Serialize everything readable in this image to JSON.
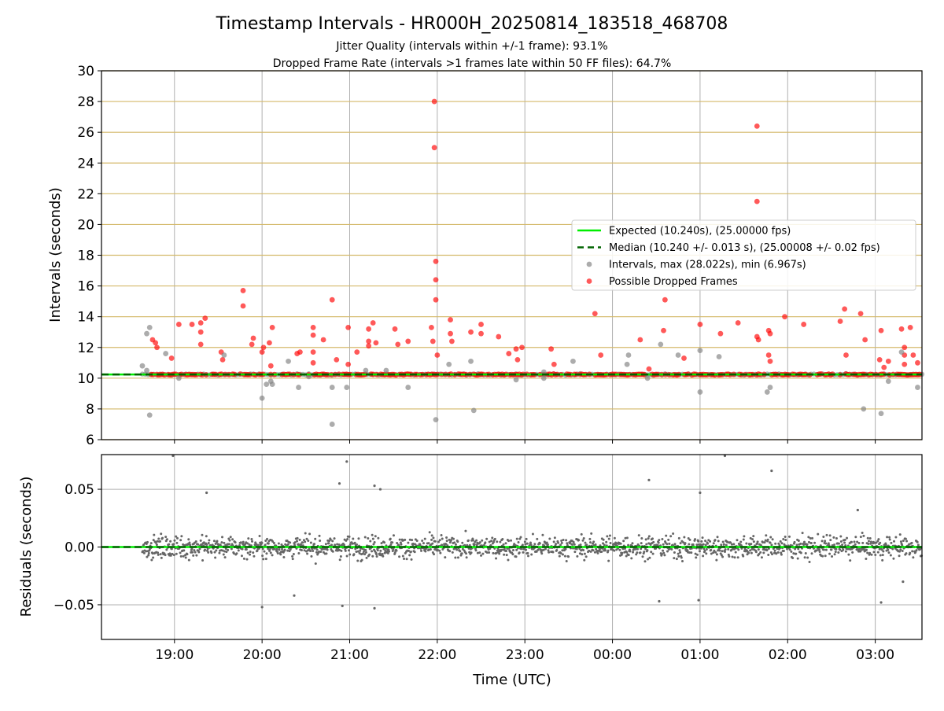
{
  "title": "Timestamp Intervals - HR000H_20250814_183518_468708",
  "subtitle_1": "Jitter Quality (intervals within +/-1 frame): 93.1%",
  "subtitle_2": "Dropped Frame Rate (intervals >1 frames late within 50 FF files): 64.7%",
  "colors": {
    "expected": "#00ee00",
    "median": "#006400",
    "intervals": "#808080",
    "dropped": "#ff0000",
    "gold_grid": "#d4b96a",
    "grid": "#b0b0b0"
  },
  "chart_data": [
    {
      "type": "scatter",
      "ylabel": "Intervals (seconds)",
      "ylim": [
        6,
        30
      ],
      "yticks": [
        "6",
        "8",
        "10",
        "12",
        "14",
        "16",
        "18",
        "20",
        "22",
        "24",
        "26",
        "28",
        "30"
      ],
      "xlim": [
        "18:10",
        "03:32"
      ],
      "grid": true,
      "legend_position": "center-right",
      "legend": [
        {
          "label": "Expected (10.240s), (25.00000 fps)",
          "style": "solid-line",
          "color": "#00ee00"
        },
        {
          "label": "Median (10.240 +/- 0.013 s), (25.00008 +/- 0.02 fps)",
          "style": "dashed-line",
          "color": "#006400"
        },
        {
          "label": "Intervals, max (28.022s), min (6.967s)",
          "style": "marker",
          "color": "#808080"
        },
        {
          "label": "Possible Dropped Frames",
          "style": "marker",
          "color": "#ff0000"
        }
      ],
      "expected_interval": 10.24,
      "median_interval": 10.24,
      "series": [
        {
          "name": "Possible Dropped Frames",
          "points": [
            [
              "18:45",
              12.5
            ],
            [
              "18:47",
              12.3
            ],
            [
              "18:48",
              12.0
            ],
            [
              "18:58",
              11.3
            ],
            [
              "19:03",
              13.5
            ],
            [
              "19:12",
              13.5
            ],
            [
              "19:18",
              12.2
            ],
            [
              "19:18",
              13.0
            ],
            [
              "19:18",
              13.6
            ],
            [
              "19:21",
              13.9
            ],
            [
              "19:32",
              11.7
            ],
            [
              "19:33",
              11.2
            ],
            [
              "19:47",
              15.7
            ],
            [
              "19:47",
              14.7
            ],
            [
              "19:53",
              12.2
            ],
            [
              "19:54",
              12.6
            ],
            [
              "20:00",
              11.7
            ],
            [
              "20:01",
              12.0
            ],
            [
              "20:05",
              12.3
            ],
            [
              "20:06",
              10.8
            ],
            [
              "20:07",
              13.3
            ],
            [
              "20:24",
              11.6
            ],
            [
              "20:26",
              11.7
            ],
            [
              "20:35",
              11.0
            ],
            [
              "20:35",
              11.7
            ],
            [
              "20:35",
              12.8
            ],
            [
              "20:35",
              13.3
            ],
            [
              "20:42",
              12.5
            ],
            [
              "20:48",
              15.1
            ],
            [
              "20:51",
              11.2
            ],
            [
              "20:59",
              10.9
            ],
            [
              "20:59",
              13.3
            ],
            [
              "21:05",
              11.7
            ],
            [
              "21:13",
              12.4
            ],
            [
              "21:13",
              12.1
            ],
            [
              "21:13",
              13.2
            ],
            [
              "21:16",
              13.6
            ],
            [
              "21:18",
              12.3
            ],
            [
              "21:31",
              13.2
            ],
            [
              "21:33",
              12.2
            ],
            [
              "21:40",
              12.4
            ],
            [
              "21:56",
              13.3
            ],
            [
              "21:57",
              12.4
            ],
            [
              "21:58",
              28.0
            ],
            [
              "21:58",
              25.0
            ],
            [
              "21:59",
              17.6
            ],
            [
              "21:59",
              16.4
            ],
            [
              "21:59",
              15.1
            ],
            [
              "22:00",
              11.5
            ],
            [
              "22:09",
              13.8
            ],
            [
              "22:09",
              12.9
            ],
            [
              "22:10",
              12.4
            ],
            [
              "22:23",
              13.0
            ],
            [
              "22:30",
              13.5
            ],
            [
              "22:30",
              12.9
            ],
            [
              "22:42",
              12.7
            ],
            [
              "22:49",
              11.6
            ],
            [
              "22:54",
              11.9
            ],
            [
              "22:55",
              11.2
            ],
            [
              "22:58",
              12.0
            ],
            [
              "23:18",
              11.9
            ],
            [
              "23:20",
              10.9
            ],
            [
              "23:48",
              14.2
            ],
            [
              "23:52",
              11.5
            ],
            [
              "24:19",
              12.5
            ],
            [
              "24:25",
              10.6
            ],
            [
              "24:35",
              13.1
            ],
            [
              "24:36",
              15.1
            ],
            [
              "24:49",
              11.3
            ],
            [
              "25:00",
              13.5
            ],
            [
              "25:14",
              12.9
            ],
            [
              "25:26",
              13.6
            ],
            [
              "25:39",
              26.4
            ],
            [
              "25:39",
              21.5
            ],
            [
              "25:39",
              12.7
            ],
            [
              "25:40",
              12.5
            ],
            [
              "25:47",
              13.1
            ],
            [
              "25:48",
              12.9
            ],
            [
              "25:47",
              11.5
            ],
            [
              "25:48",
              11.1
            ],
            [
              "25:58",
              14.0
            ],
            [
              "26:11",
              13.5
            ],
            [
              "26:36",
              13.7
            ],
            [
              "26:39",
              14.5
            ],
            [
              "26:40",
              11.5
            ],
            [
              "26:50",
              14.2
            ],
            [
              "26:53",
              12.5
            ],
            [
              "27:03",
              11.2
            ],
            [
              "27:04",
              13.1
            ],
            [
              "27:09",
              11.1
            ],
            [
              "27:06",
              10.7
            ],
            [
              "27:18",
              13.2
            ],
            [
              "27:20",
              12.0
            ],
            [
              "27:24",
              13.3
            ],
            [
              "27:26",
              11.5
            ],
            [
              "27:29",
              11.0
            ],
            [
              "27:20",
              11.5
            ],
            [
              "27:20",
              10.9
            ]
          ]
        },
        {
          "name": "Intervals",
          "points": [
            [
              "18:38",
              10.8
            ],
            [
              "18:41",
              12.9
            ],
            [
              "18:41",
              10.5
            ],
            [
              "18:43",
              13.3
            ],
            [
              "18:43",
              7.6
            ],
            [
              "18:54",
              11.6
            ],
            [
              "19:03",
              10.0
            ],
            [
              "19:34",
              11.5
            ],
            [
              "20:00",
              8.7
            ],
            [
              "20:03",
              9.6
            ],
            [
              "20:06",
              9.8
            ],
            [
              "20:07",
              9.6
            ],
            [
              "20:18",
              11.1
            ],
            [
              "20:25",
              9.4
            ],
            [
              "20:32",
              10.1
            ],
            [
              "20:48",
              9.4
            ],
            [
              "20:48",
              7.0
            ],
            [
              "20:58",
              9.4
            ],
            [
              "21:11",
              10.5
            ],
            [
              "21:25",
              10.5
            ],
            [
              "21:40",
              9.4
            ],
            [
              "21:59",
              7.3
            ],
            [
              "22:08",
              10.9
            ],
            [
              "22:23",
              11.1
            ],
            [
              "22:25",
              7.9
            ],
            [
              "22:54",
              9.9
            ],
            [
              "23:13",
              10.0
            ],
            [
              "23:13",
              10.4
            ],
            [
              "23:33",
              11.1
            ],
            [
              "24:10",
              10.9
            ],
            [
              "24:11",
              11.5
            ],
            [
              "24:24",
              10.0
            ],
            [
              "24:33",
              12.2
            ],
            [
              "24:45",
              11.5
            ],
            [
              "25:00",
              11.8
            ],
            [
              "25:00",
              9.1
            ],
            [
              "25:13",
              11.4
            ],
            [
              "25:46",
              9.1
            ],
            [
              "25:48",
              9.4
            ],
            [
              "26:52",
              8.0
            ],
            [
              "27:04",
              7.7
            ],
            [
              "27:09",
              9.8
            ],
            [
              "27:18",
              11.7
            ],
            [
              "27:29",
              9.4
            ]
          ]
        }
      ]
    },
    {
      "type": "scatter",
      "xlabel": "Time (UTC)",
      "ylabel": "Residuals (seconds)",
      "ylim": [
        -0.08,
        0.08
      ],
      "yticks": [
        "−0.05",
        "0.00",
        "0.05"
      ],
      "xticks": [
        "19:00",
        "20:00",
        "21:00",
        "22:00",
        "23:00",
        "00:00",
        "01:00",
        "02:00",
        "03:00"
      ],
      "grid": true,
      "outliers": [
        [
          "18:59",
          0.079
        ],
        [
          "19:22",
          0.047
        ],
        [
          "20:00",
          -0.052
        ],
        [
          "20:22",
          -0.042
        ],
        [
          "20:53",
          0.055
        ],
        [
          "20:58",
          0.074
        ],
        [
          "20:55",
          -0.051
        ],
        [
          "21:17",
          0.053
        ],
        [
          "21:21",
          0.05
        ],
        [
          "21:17",
          -0.053
        ],
        [
          "24:25",
          0.058
        ],
        [
          "24:32",
          -0.047
        ],
        [
          "25:00",
          0.047
        ],
        [
          "24:59",
          -0.046
        ],
        [
          "25:17",
          0.079
        ],
        [
          "25:49",
          0.066
        ],
        [
          "27:04",
          -0.048
        ],
        [
          "27:19",
          -0.03
        ],
        [
          "26:48",
          0.032
        ]
      ]
    }
  ]
}
